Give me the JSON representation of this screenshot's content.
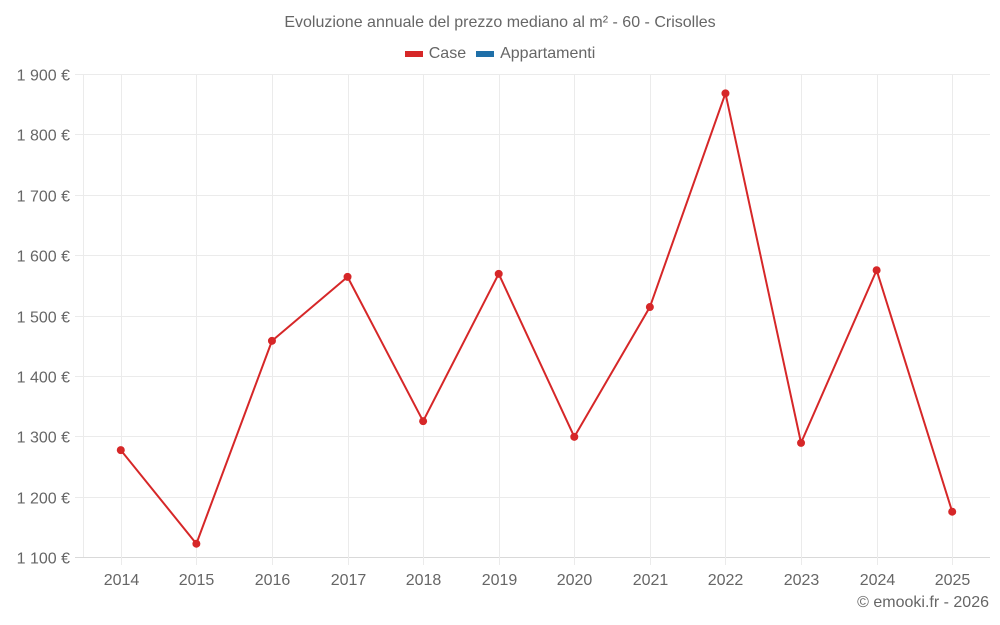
{
  "chart_data": {
    "type": "line",
    "title": "Evoluzione annuale del prezzo mediano al m² - 60 - Crisolles",
    "xlabel": "",
    "ylabel": "",
    "categories": [
      "2014",
      "2015",
      "2016",
      "2017",
      "2018",
      "2019",
      "2020",
      "2021",
      "2022",
      "2023",
      "2024",
      "2025"
    ],
    "series": [
      {
        "name": "Case",
        "color": "#d62728",
        "values": [
          1277,
          1122,
          1458,
          1564,
          1325,
          1569,
          1299,
          1514,
          1868,
          1289,
          1575,
          1175
        ]
      },
      {
        "name": "Appartamenti",
        "color": "#1f6fa8",
        "values": []
      }
    ],
    "ylim": [
      1100,
      1900
    ],
    "yticks": [
      1100,
      1200,
      1300,
      1400,
      1500,
      1600,
      1700,
      1800,
      1900
    ],
    "ytick_labels": [
      "1 100 €",
      "1 200 €",
      "1 300 €",
      "1 400 €",
      "1 500 €",
      "1 600 €",
      "1 700 €",
      "1 800 €",
      "1 900 €"
    ],
    "grid": true,
    "legend_position": "top"
  },
  "title": "Evoluzione annuale del prezzo mediano al m² - 60 - Crisolles",
  "legend": [
    {
      "label": "Case",
      "color": "#d62728"
    },
    {
      "label": "Appartamenti",
      "color": "#1f6fa8"
    }
  ],
  "footer": "© emooki.fr - 2026"
}
